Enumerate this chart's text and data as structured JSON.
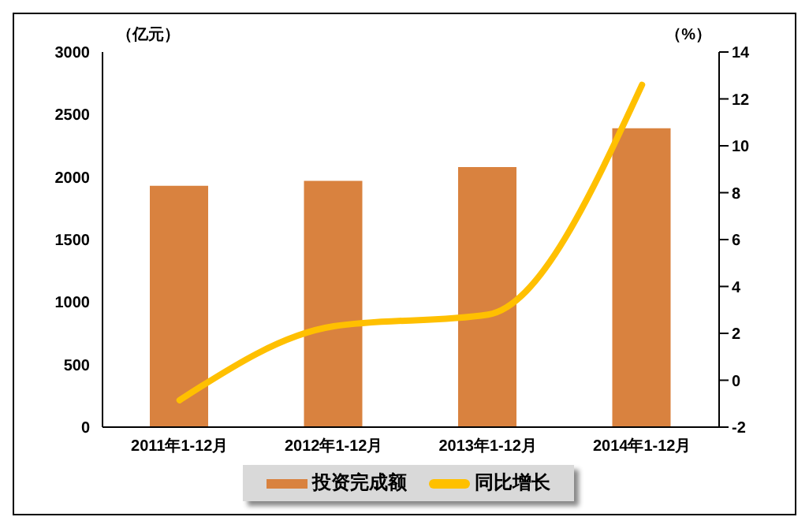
{
  "chart_data": {
    "type": "bar",
    "ylabel": "（亿元）",
    "y2label": "（%）",
    "categories": [
      "2011年1-12月",
      "2012年1-12月",
      "2013年1-12月",
      "2014年1-12月"
    ],
    "series": [
      {
        "name": "投资完成额",
        "color": "#d9823f",
        "values": [
          1930,
          1970,
          2080,
          2390
        ]
      },
      {
        "name": "同比增长",
        "type": "line",
        "axis": "y2",
        "color": "#ffc000",
        "values": [
          -0.85,
          2.3,
          2.8,
          12.6
        ]
      }
    ],
    "ylim": [
      0,
      3000
    ],
    "yticks": [
      0,
      500,
      1000,
      1500,
      2000,
      2500,
      3000
    ],
    "y2lim": [
      -2,
      14
    ],
    "y2ticks": [
      -2,
      0,
      2,
      4,
      6,
      8,
      10,
      12,
      14
    ],
    "legend": "bottom",
    "grid": false,
    "marker": "none"
  }
}
